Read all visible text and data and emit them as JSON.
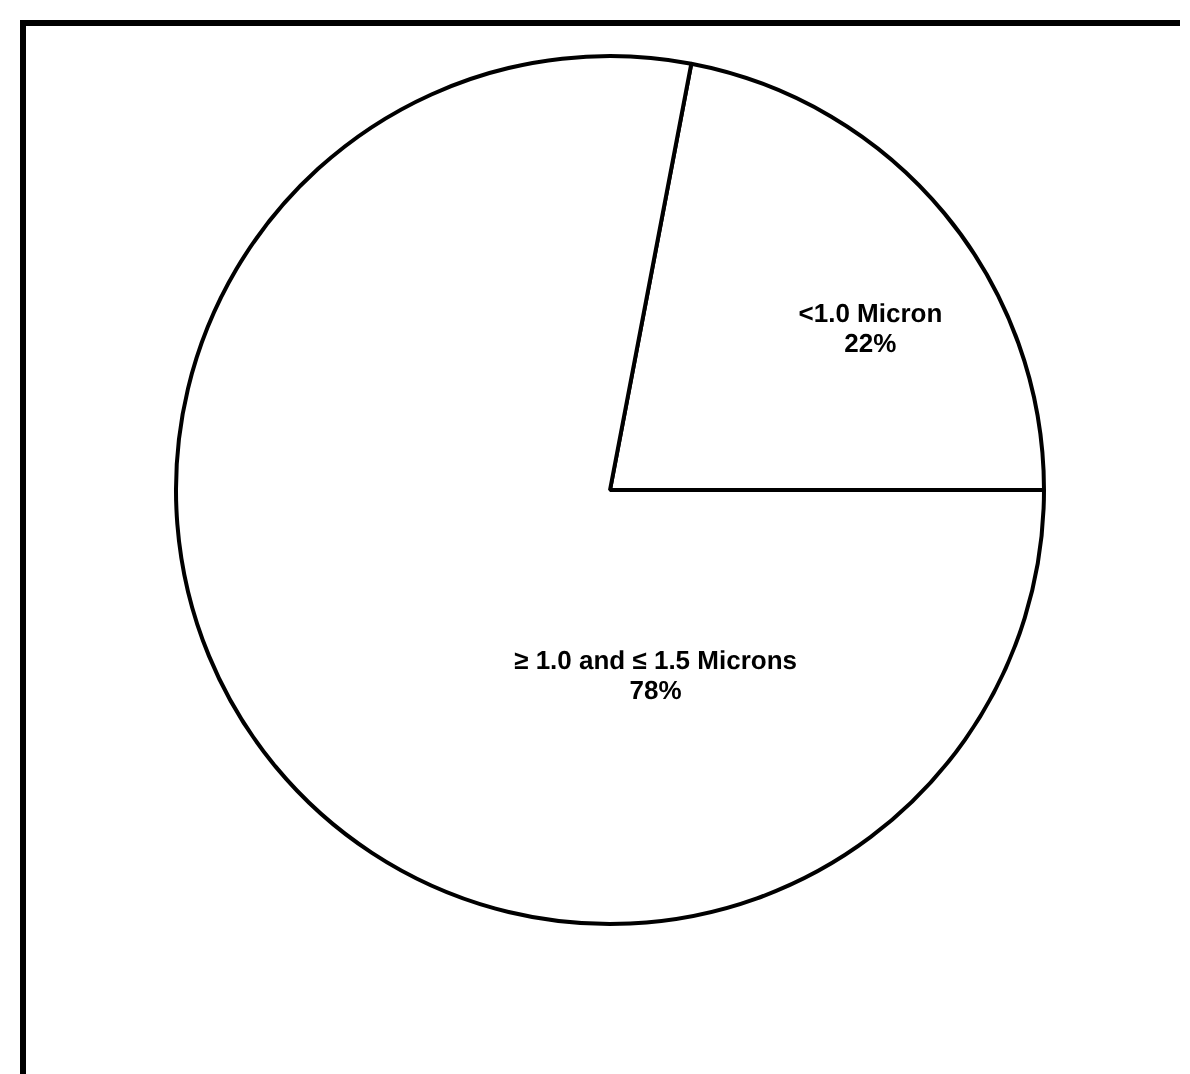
{
  "chart_data": {
    "type": "pie",
    "categories": [
      "<1.0 Micron",
      "≥ 1.0 and ≤ 1.5 Microns"
    ],
    "values": [
      22,
      78
    ],
    "colors": [
      "#ffffff",
      "#ffffff"
    ],
    "value_labels": [
      "22%",
      "78%"
    ]
  }
}
